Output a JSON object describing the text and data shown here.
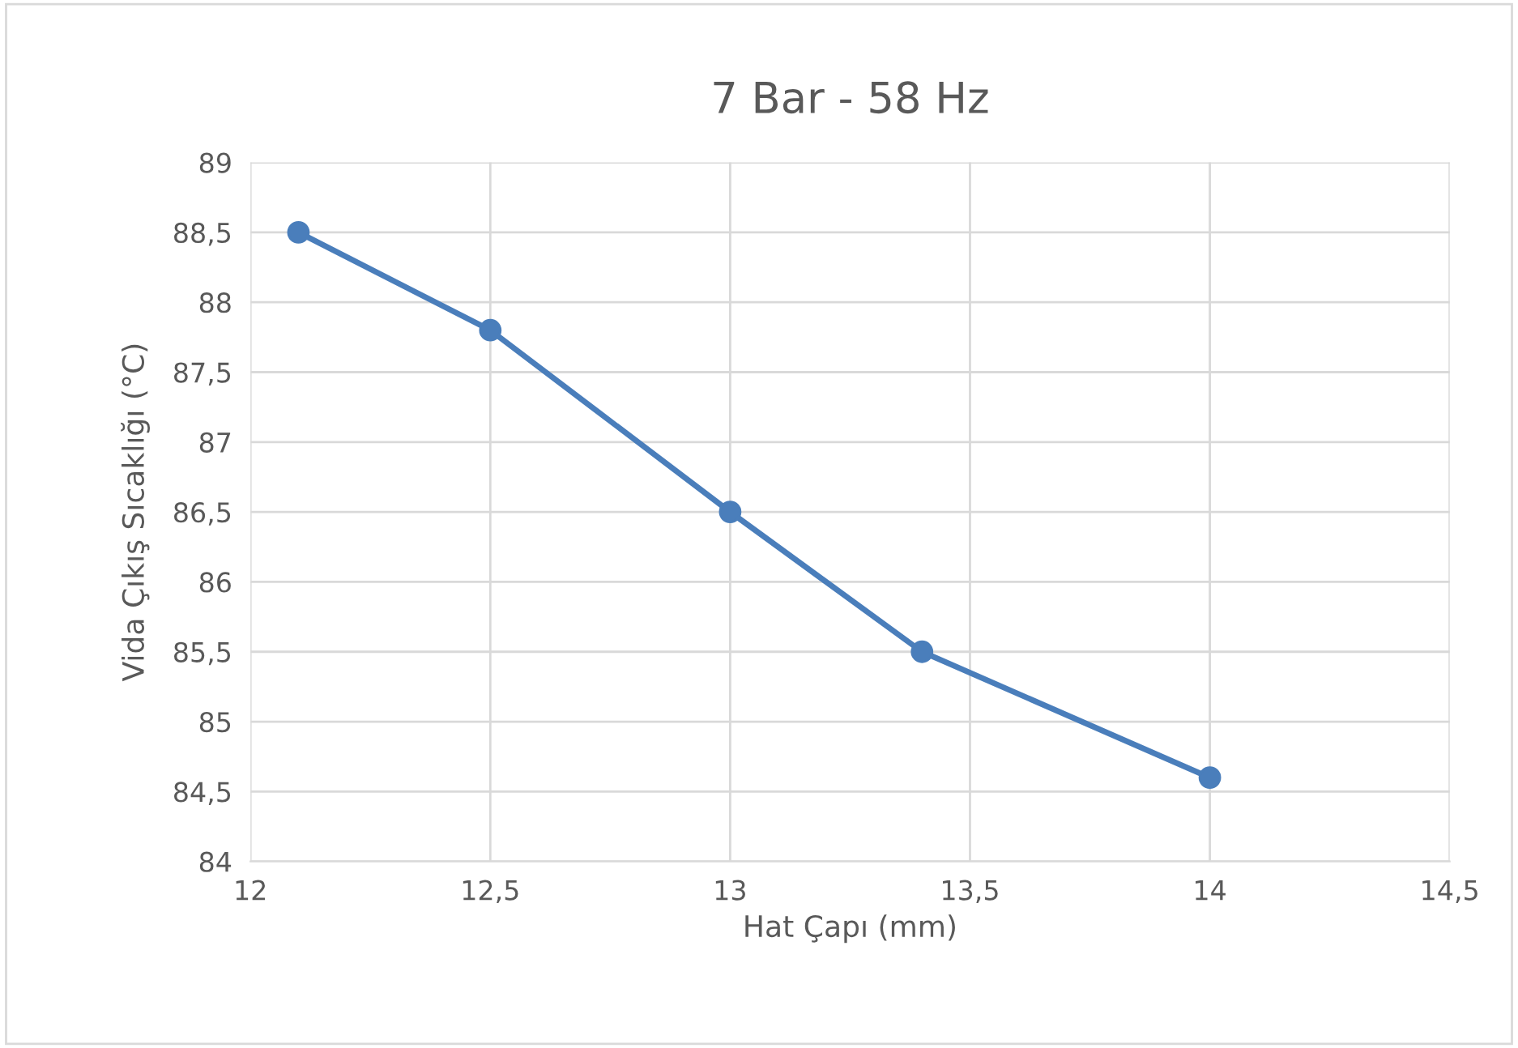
{
  "chart_data": {
    "type": "line",
    "title": "7 Bar - 58 Hz",
    "xlabel": "Hat Çapı (mm)",
    "ylabel": "Vida Çıkış Sıcaklığı (°C)",
    "x": [
      12.1,
      12.5,
      13,
      13.4,
      14
    ],
    "series": [
      {
        "color": "#4a7ebb",
        "values": [
          88.5,
          87.8,
          86.5,
          85.5,
          84.6
        ]
      }
    ],
    "xlim": [
      12,
      14.5
    ],
    "xticks": [
      12,
      {
        "value": 12.5,
        "label": "12,5"
      },
      13,
      {
        "value": 13.5,
        "label": "13,5"
      },
      14,
      {
        "value": 14.5,
        "label": "14,5"
      }
    ],
    "ylim": [
      84,
      89
    ],
    "yticks": [
      84,
      {
        "value": 84.5,
        "label": "84,5"
      },
      85,
      {
        "value": 85.5,
        "label": "85,5"
      },
      86,
      {
        "value": 86.5,
        "label": "86,5"
      },
      87,
      {
        "value": 87.5,
        "label": "87,5"
      },
      88,
      {
        "value": 88.5,
        "label": "88,5"
      },
      89
    ],
    "grid": true,
    "marker": "circle",
    "line_style": "solid"
  }
}
